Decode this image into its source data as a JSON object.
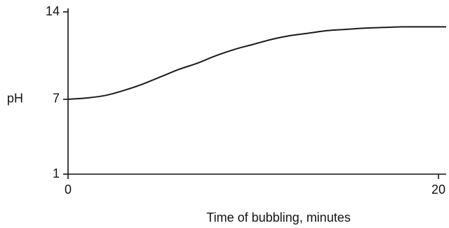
{
  "chart_data": {
    "type": "line",
    "title": "",
    "xlabel": "Time of bubbling, minutes",
    "ylabel": "pH",
    "xlim": [
      0,
      20
    ],
    "ylim": [
      1,
      14
    ],
    "x_ticks": [
      0,
      20
    ],
    "x_tick_labels": [
      "0",
      "20"
    ],
    "y_ticks": [
      1,
      7,
      14
    ],
    "y_tick_labels": [
      "1",
      "7",
      "14"
    ],
    "grid": false,
    "legend": "none",
    "series": [
      {
        "color": "#1a1a1a",
        "x": [
          0,
          1,
          2,
          3,
          4,
          5,
          6,
          7,
          8,
          9,
          10,
          11,
          12,
          13,
          14,
          15,
          16,
          17,
          18,
          19,
          20
        ],
        "y": [
          7.0,
          7.1,
          7.3,
          7.7,
          8.2,
          8.8,
          9.4,
          9.9,
          10.5,
          11.0,
          11.4,
          11.8,
          12.1,
          12.3,
          12.5,
          12.6,
          12.7,
          12.75,
          12.8,
          12.8,
          12.8
        ]
      }
    ]
  }
}
